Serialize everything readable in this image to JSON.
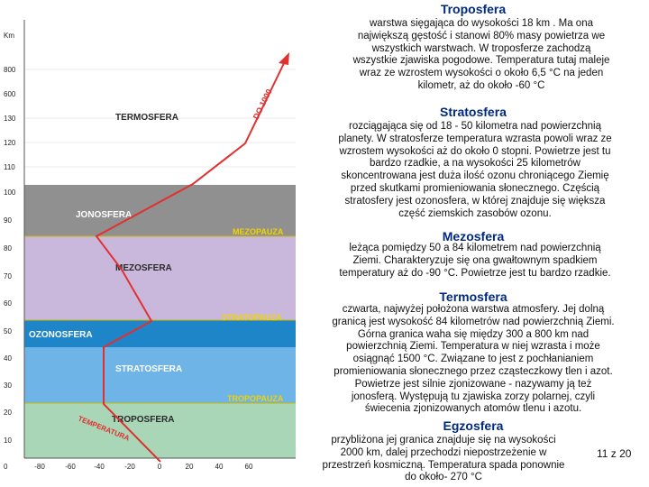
{
  "diagram": {
    "axis_unit": "Km",
    "y_ticks": [
      "800",
      "600",
      "130",
      "120",
      "110",
      "100",
      "90",
      "80",
      "70",
      "60",
      "50",
      "40",
      "30",
      "20",
      "10",
      "0"
    ],
    "x_ticks": [
      "-80",
      "-60",
      "-40",
      "-20",
      "0",
      "20",
      "40",
      "60"
    ],
    "zones": [
      {
        "label": "TERMOSFERA",
        "color": "#ffffff"
      },
      {
        "label": "JONOSFERA",
        "color": "#909090"
      },
      {
        "label": "MEZOSFERA",
        "color": "#c9b8dc"
      },
      {
        "label": "OZONOSFERA",
        "color": "#1e86c8"
      },
      {
        "label": "STRATOSFERA",
        "color": "#6fb4e6"
      },
      {
        "label": "TROPOSFERA",
        "color": "#a9d6b6"
      }
    ],
    "boundaries": [
      "MEZOPAUZA",
      "STRATOPAUZA",
      "TROPOPAUZA"
    ],
    "boundary_color": "#f2d200",
    "curve_label": "TEMPERATURA",
    "curve_annotation": "DO 1000",
    "curve_color": "#e03030"
  },
  "sections": [
    {
      "title": "Troposfera",
      "lines": [
        "warstwa sięgająca do wysokości 18 km . Ma ona",
        "największą gęstość i stanowi 80% masy powietrza we",
        "wszystkich warstwach. W troposferze zachodzą",
        "wszystkie zjawiska pogodowe. Temperatura tutaj maleje",
        "wraz ze wzrostem wysokości o około 6,5 °C na jeden",
        "kilometr, aż do około -60 °C"
      ]
    },
    {
      "title": "Stratosfera",
      "lines": [
        "rozciągająca się od 18 - 50 kilometra nad powierzchnią",
        "planety. W stratosferze temperatura wzrasta powoli wraz ze",
        "wzrostem wysokości aż do około 0 stopni. Powietrze jest tu",
        "bardzo rzadkie, a na wysokości 25 kilometrów",
        "skoncentrowana jest duża ilość ozonu chroniącego Ziemię",
        "przed skutkami promieniowania słonecznego. Częścią",
        "stratosfery jest ozonosfera, w której znajduje się większa",
        "część ziemskich zasobów ozonu."
      ]
    },
    {
      "title": "Mezosfera",
      "lines": [
        "leżąca pomiędzy 50 a 84 kilometrem nad powierzchnią",
        "Ziemi. Charakteryzuje się ona gwałtownym spadkiem",
        "temperatury aż do -90 °C. Powietrze jest tu bardzo rzadkie."
      ]
    },
    {
      "title": "Termosfera",
      "lines": [
        "czwarta, najwyżej położona warstwa atmosfery. Jej dolną",
        "granicą jest wysokość 84 kilometrów nad powierzchnią Ziemi.",
        "Górna granica waha się między 300 a 800 km nad",
        "powierzchnią Ziemi. Temperatura w niej wzrasta i może",
        "osiągnąć 1500 °C.  Związane to jest z pochłanianiem",
        "promieniowania słonecznego przez cząsteczkowy tlen i azot.",
        "Powietrze jest silnie zjonizowane -  nazywamy ją też",
        "jonosferą. Występują tu zjawiska zorzy polarnej, czyli",
        "świecenia zjonizowanych atomów tlenu i azotu."
      ]
    },
    {
      "title": "Egzosfera",
      "lines": [
        "przybliżona jej granica znajduje się na wysokości",
        "2000 km, dalej przechodzi niepostrzeżenie w",
        "przestrzeń kosmiczną. Temperatura spada ponownie",
        "do około- 270 °C"
      ]
    }
  ],
  "page_number": "11 z 20"
}
